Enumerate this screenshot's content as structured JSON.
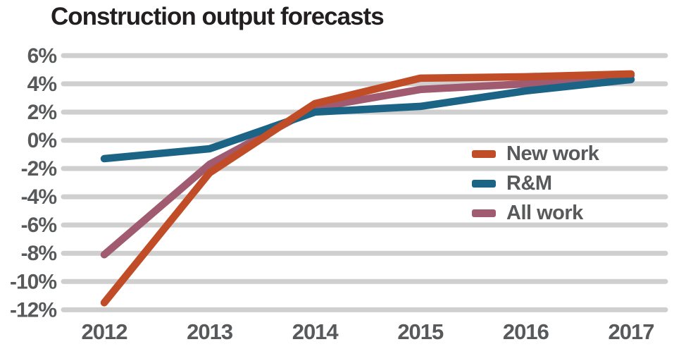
{
  "chart_data": {
    "type": "line",
    "title": "Construction output forecasts",
    "x": [
      "2012",
      "2013",
      "2014",
      "2015",
      "2016",
      "2017"
    ],
    "xlabel": "",
    "ylabel": "",
    "unit": "%",
    "ylim": [
      -12,
      6
    ],
    "grid": true,
    "legend_position": "middle-right",
    "y_ticks": [
      {
        "label": "6%",
        "value": 6
      },
      {
        "label": "4%",
        "value": 4
      },
      {
        "label": "2%",
        "value": 2
      },
      {
        "label": "0%",
        "value": 0
      },
      {
        "label": "-2%",
        "value": -2
      },
      {
        "label": "-4%",
        "value": -4
      },
      {
        "label": "-6%",
        "value": -6
      },
      {
        "label": "-8%",
        "value": -8
      },
      {
        "label": "-10%",
        "value": -10
      },
      {
        "label": "-12%",
        "value": -12
      }
    ],
    "series": [
      {
        "name": "New work",
        "color": "#c14d28",
        "values": [
          -11.5,
          -2.3,
          2.6,
          4.4,
          4.5,
          4.7
        ]
      },
      {
        "name": "R&M",
        "color": "#1c6486",
        "values": [
          -1.3,
          -0.6,
          2.0,
          2.4,
          3.5,
          4.3
        ]
      },
      {
        "name": "All work",
        "color": "#a15b70",
        "values": [
          -8.1,
          -1.7,
          2.3,
          3.6,
          4.0,
          4.6
        ]
      }
    ],
    "draw_order": [
      2,
      1,
      0
    ]
  },
  "colors": {
    "gridline": "#cfcfcf",
    "tick_text": "#58595b",
    "title_text": "#231f20"
  }
}
